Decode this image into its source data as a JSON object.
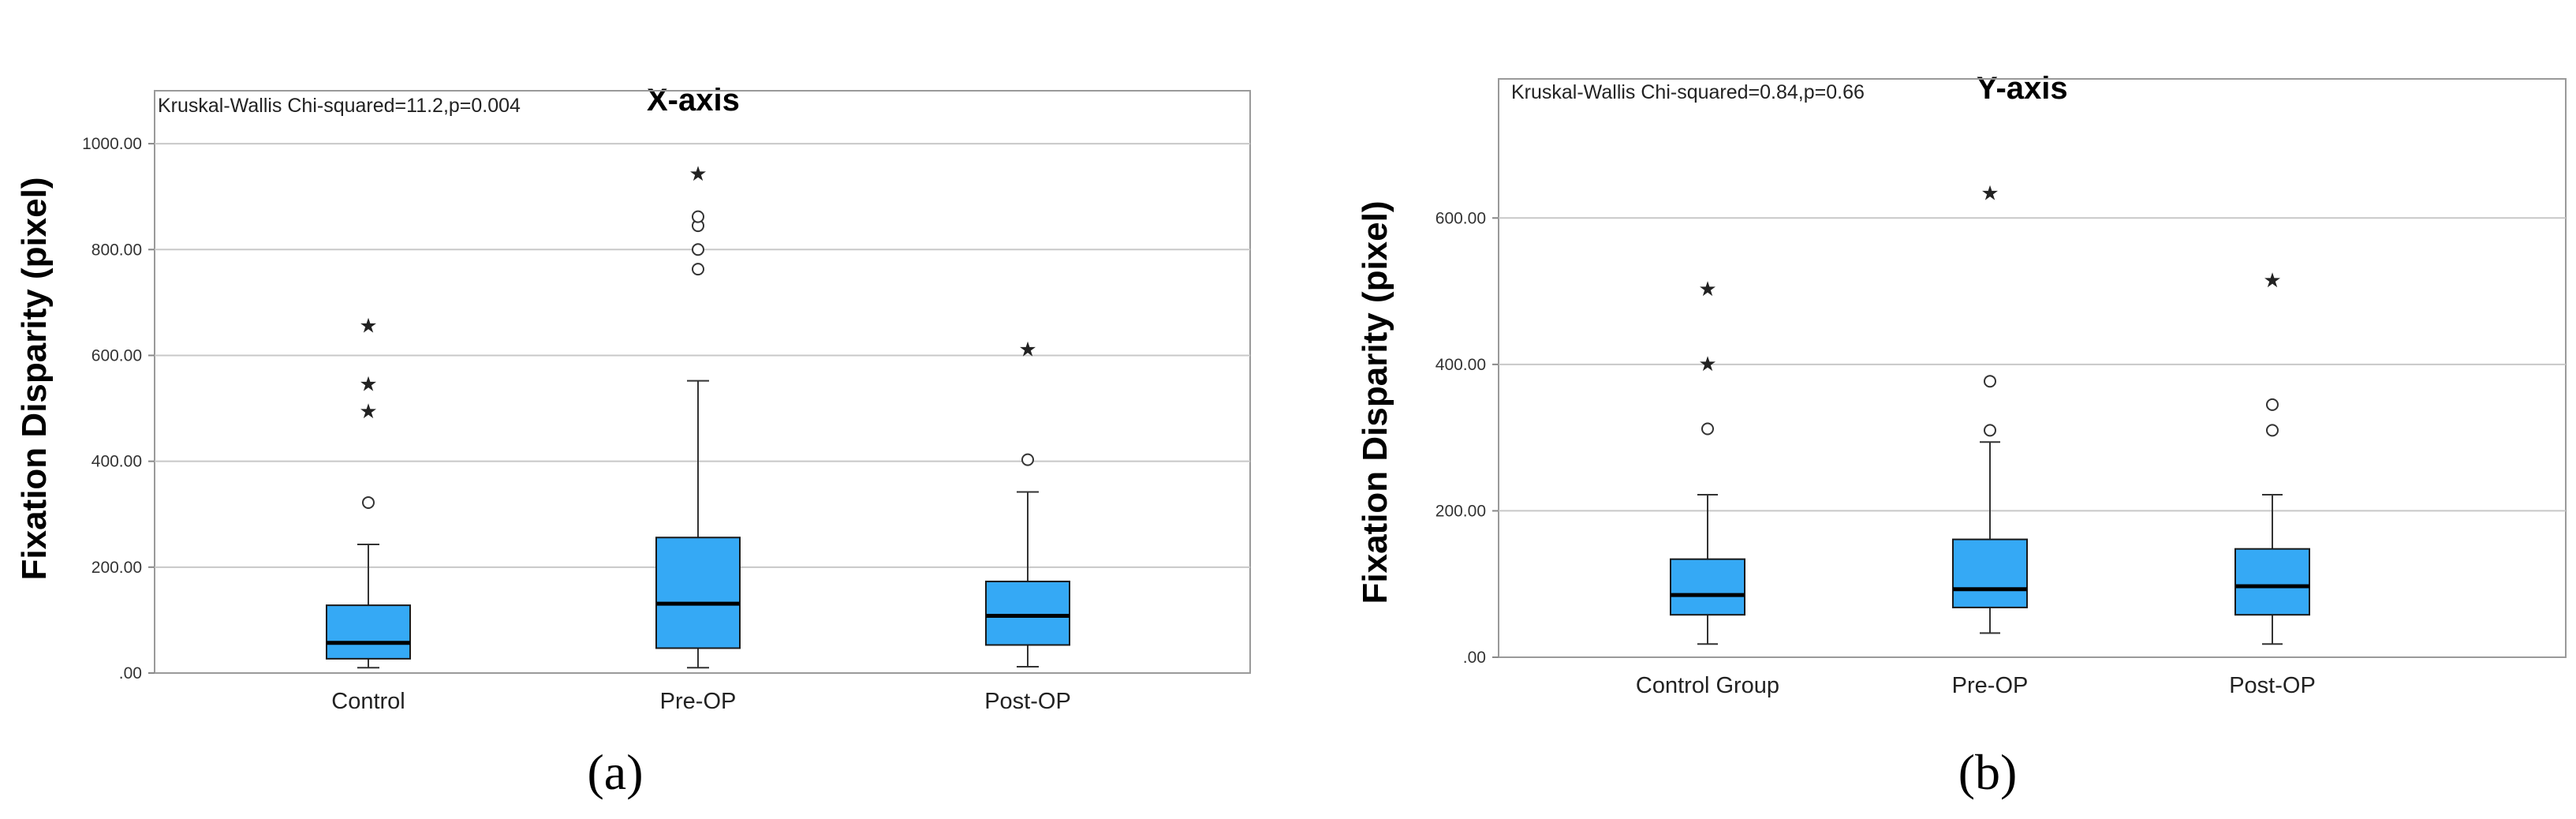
{
  "chart_data": [
    {
      "type": "boxplot",
      "panel_label": "(a)",
      "title": "X-axis",
      "stat_text": "Kruskal-Wallis Chi-squared=11.2,p=0.004",
      "ylabel": "Fixation Disparity (pixel)",
      "xlabel": "",
      "ylim": [
        0,
        1100
      ],
      "yticks": [
        0,
        200,
        400,
        600,
        800,
        1000
      ],
      "ytick_labels": [
        ".00",
        "200.00",
        "400.00",
        "600.00",
        "800.00",
        "1000.00"
      ],
      "grid": true,
      "box_color": "#35a9f5",
      "categories": [
        "Control",
        "Pre-OP",
        "Post-OP"
      ],
      "boxes": [
        {
          "whisker_low": 10,
          "q1": 27,
          "median": 57,
          "q3": 128,
          "whisker_high": 243,
          "outliers": [
            322
          ],
          "extremes": [
            493,
            545,
            655
          ]
        },
        {
          "whisker_low": 10,
          "q1": 47,
          "median": 131,
          "q3": 256,
          "whisker_high": 552,
          "outliers": [
            763,
            800,
            845,
            862
          ],
          "extremes": [
            942
          ]
        },
        {
          "whisker_low": 12,
          "q1": 53,
          "median": 108,
          "q3": 173,
          "whisker_high": 342,
          "outliers": [
            403
          ],
          "extremes": [
            610
          ]
        }
      ]
    },
    {
      "type": "boxplot",
      "panel_label": "(b)",
      "title": "Y-axis",
      "stat_text": "Kruskal-Wallis Chi-squared=0.84,p=0.66",
      "ylabel": "Fixation Disparity (pixel)",
      "xlabel": "",
      "ylim": [
        0,
        790
      ],
      "yticks": [
        0,
        200,
        400,
        600
      ],
      "ytick_labels": [
        ".00",
        "200.00",
        "400.00",
        "600.00"
      ],
      "grid": true,
      "box_color": "#35a9f5",
      "categories": [
        "Control Group",
        "Pre-OP",
        "Post-OP"
      ],
      "boxes": [
        {
          "whisker_low": 18,
          "q1": 58,
          "median": 85,
          "q3": 134,
          "whisker_high": 222,
          "outliers": [
            312
          ],
          "extremes": [
            400,
            502
          ]
        },
        {
          "whisker_low": 33,
          "q1": 68,
          "median": 93,
          "q3": 161,
          "whisker_high": 294,
          "outliers": [
            310,
            377
          ],
          "extremes": [
            633
          ]
        },
        {
          "whisker_low": 18,
          "q1": 58,
          "median": 97,
          "q3": 148,
          "whisker_high": 222,
          "outliers": [
            310,
            345
          ],
          "extremes": [
            514
          ]
        }
      ]
    }
  ]
}
